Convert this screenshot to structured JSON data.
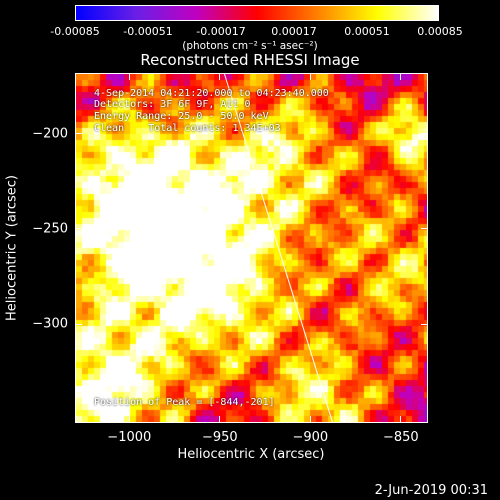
{
  "colorbar": {
    "ticks": [
      "-0.00085",
      "-0.00051",
      "-0.00017",
      "0.00017",
      "0.00051",
      "0.00085"
    ],
    "units": "(photons cm⁻² s⁻¹ asec⁻²)",
    "colors": [
      "#0000ff",
      "#6a1fe6",
      "#c000c0",
      "#ff0000",
      "#ff8000",
      "#ffff00",
      "#ffffff"
    ]
  },
  "annotation": {
    "time": "4-Sep-2014 04:21:20.000 to 04:23:40.000",
    "detectors": "Detectors: 3F 6F 9F, Att 0",
    "energy": "Energy Range: 25.0 - 50.0 keV",
    "clean": "Clean    Total counts: 1.34E+03",
    "peak": "Position of Peak = [-844,-201]"
  },
  "footer": {
    "timestamp": "2-Jun-2019 00:31"
  },
  "chart_data": {
    "type": "heatmap",
    "title": "Reconstructed RHESSI Image",
    "xlabel": "Heliocentric X (arcsec)",
    "ylabel": "Heliocentric Y (arcsec)",
    "xlim": [
      -1030,
      -835
    ],
    "ylim": [
      -352,
      -168
    ],
    "x_ticks": [
      -1000,
      -950,
      -900,
      -850
    ],
    "y_ticks": [
      -200,
      -250,
      -300
    ],
    "x_tick_labels": [
      "−1000",
      "−950",
      "−900",
      "−850"
    ],
    "y_tick_labels": [
      "−200",
      "−250",
      "−300"
    ],
    "color_range": [
      -0.00085,
      0.00085
    ],
    "peak_position": [
      -844,
      -201
    ],
    "limb_line": [
      [
        -948,
        -168
      ],
      [
        -888,
        -352
      ]
    ],
    "bright_regions": [
      {
        "x": -1000,
        "y": -232,
        "r": 25,
        "level": 0.9
      },
      {
        "x": -975,
        "y": -255,
        "r": 25,
        "level": 0.8
      },
      {
        "x": -1015,
        "y": -335,
        "r": 20,
        "level": 1.0
      },
      {
        "x": -945,
        "y": -285,
        "r": 20,
        "level": 0.75
      },
      {
        "x": -915,
        "y": -210,
        "r": 20,
        "level": 0.8
      },
      {
        "x": -850,
        "y": -270,
        "r": 20,
        "level": 0.75
      },
      {
        "x": -895,
        "y": -340,
        "r": 15,
        "level": 0.85
      },
      {
        "x": -844,
        "y": -201,
        "r": 8,
        "level": 1.0
      }
    ]
  }
}
